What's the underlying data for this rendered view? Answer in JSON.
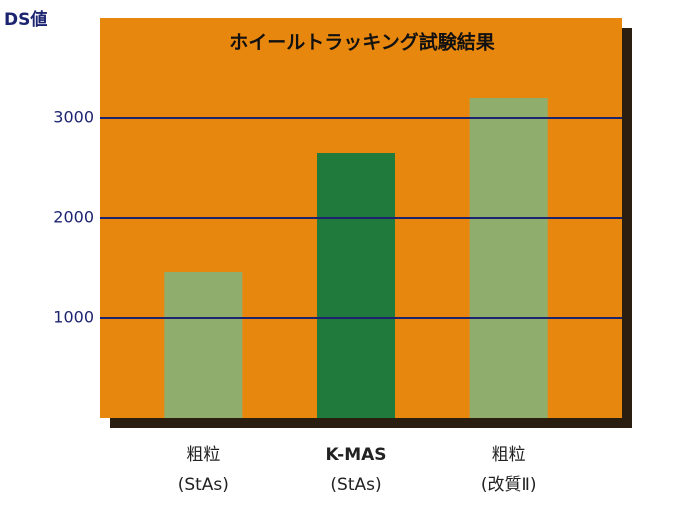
{
  "chart_data": {
    "type": "bar",
    "title": "ホイールトラッキング試験結果",
    "y_label": "DS値",
    "categories": [
      [
        "粗粒",
        "(StAs)"
      ],
      [
        "K-MAS",
        "(StAs)"
      ],
      [
        "粗粒",
        "(改質Ⅱ)"
      ]
    ],
    "values": [
      1460,
      2650,
      3200
    ],
    "colors": [
      "#8fae6e",
      "#1f7a3c",
      "#8fae6e"
    ],
    "background": "#e8870e",
    "grid_color": "#1c2470",
    "ylim": [
      0,
      4000
    ],
    "yticks": [
      1000,
      2000,
      3000
    ],
    "grid": true
  }
}
